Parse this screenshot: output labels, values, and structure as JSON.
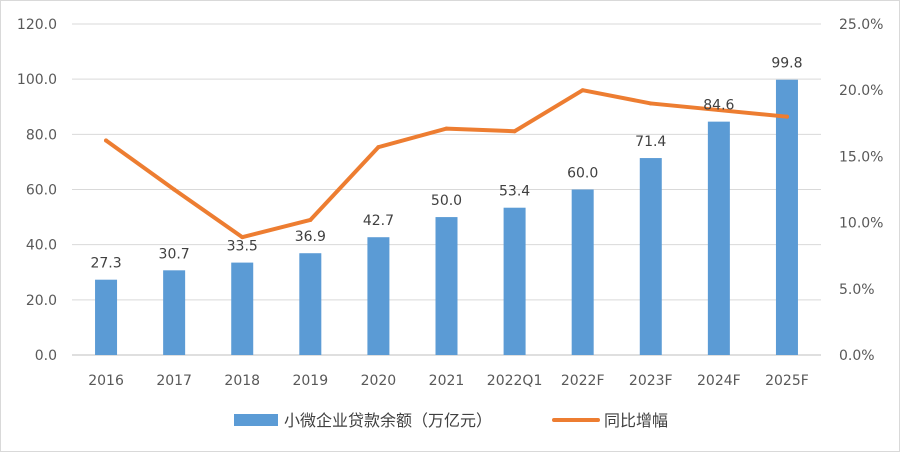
{
  "chart_data": {
    "type": "bar",
    "title": "",
    "xlabel": "",
    "categories": [
      "2016",
      "2017",
      "2018",
      "2019",
      "2020",
      "2021",
      "2022Q1",
      "2022F",
      "2023F",
      "2024F",
      "2025F"
    ],
    "series": [
      {
        "name": "小微企业贷款余额（万亿元）",
        "type": "bar",
        "axis": "left",
        "color": "#5b9bd5",
        "values": [
          27.3,
          30.7,
          33.5,
          36.9,
          42.7,
          50.0,
          53.4,
          60.0,
          71.4,
          84.6,
          99.8
        ],
        "labels": [
          "27.3",
          "30.7",
          "33.5",
          "36.9",
          "42.7",
          "50.0",
          "53.4",
          "60.0",
          "71.4",
          "84.6",
          "99.8"
        ]
      },
      {
        "name": "同比增幅",
        "type": "line",
        "axis": "right",
        "color": "#ed7d31",
        "values": [
          0.162,
          0.125,
          0.089,
          0.102,
          0.157,
          0.171,
          0.169,
          0.2,
          0.19,
          0.185,
          0.18
        ]
      }
    ],
    "ylim": [
      0,
      120
    ],
    "y2lim": [
      0,
      0.25
    ],
    "yticks": [
      "0.0",
      "20.0",
      "40.0",
      "60.0",
      "80.0",
      "100.0",
      "120.0"
    ],
    "y2ticks": [
      "0.0%",
      "5.0%",
      "10.0%",
      "15.0%",
      "20.0%",
      "25.0%"
    ],
    "grid": true,
    "legend": "bottom"
  }
}
